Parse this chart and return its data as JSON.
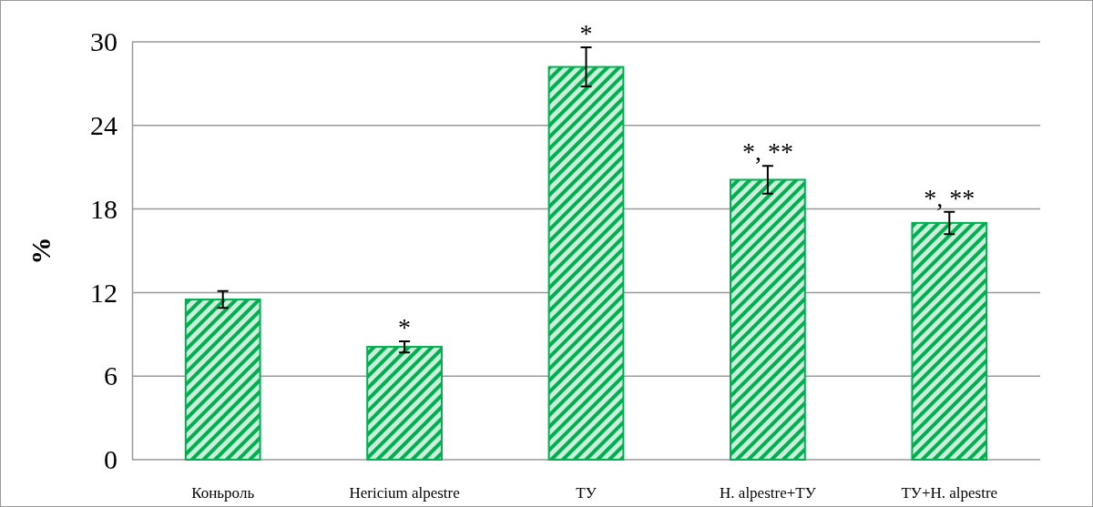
{
  "chart_data": {
    "type": "bar",
    "ylabel": "%",
    "categories": [
      "Коньроль",
      "Hericium alpestre",
      "ТУ",
      "H. alpestre+ТУ",
      "ТУ+H. alpestre"
    ],
    "values": [
      11.5,
      8.1,
      28.2,
      20.1,
      17.0
    ],
    "errors": [
      0.6,
      0.4,
      1.4,
      1.0,
      0.8
    ],
    "color": "#00b050",
    "ylim": [
      0,
      30
    ],
    "yticks": [
      0,
      6,
      12,
      18,
      24,
      30
    ],
    "grid": "y",
    "annotations": [
      {
        "text": "*",
        "x": "Hericium alpestre",
        "y": 8.1
      },
      {
        "text": "*",
        "x": "ТУ",
        "y": 28.2
      },
      {
        "text": "*, **",
        "x": "H. alpestre+ТУ",
        "y": 20.1
      },
      {
        "text": "*, **",
        "x": "ТУ+H. alpestre",
        "y": 17.0
      }
    ]
  }
}
